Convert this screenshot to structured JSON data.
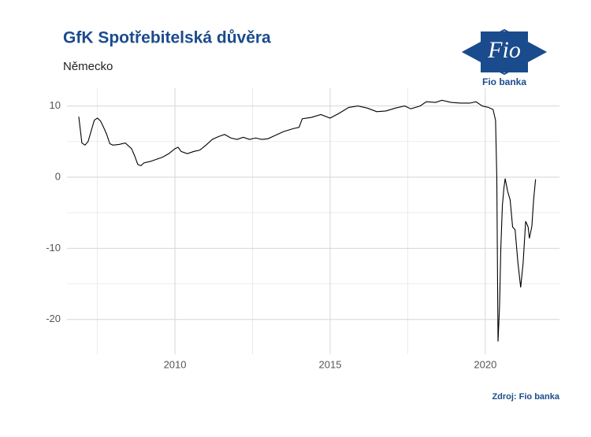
{
  "chart_data": {
    "type": "line",
    "title": "GfK Spotřebitelská důvěra",
    "subtitle": "Německo",
    "source": "Zdroj: Fio banka",
    "logo": {
      "mark": "Fio",
      "name": "Fio banka"
    },
    "x": [
      2006.9,
      2007.0,
      2007.1,
      2007.2,
      2007.3,
      2007.4,
      2007.5,
      2007.6,
      2007.7,
      2007.8,
      2007.9,
      2008.0,
      2008.2,
      2008.4,
      2008.6,
      2008.7,
      2008.8,
      2008.9,
      2009.0,
      2009.2,
      2009.4,
      2009.6,
      2009.8,
      2010.0,
      2010.1,
      2010.2,
      2010.4,
      2010.6,
      2010.8,
      2011.0,
      2011.2,
      2011.4,
      2011.6,
      2011.8,
      2012.0,
      2012.2,
      2012.4,
      2012.6,
      2012.8,
      2013.0,
      2013.2,
      2013.5,
      2013.8,
      2014.0,
      2014.1,
      2014.4,
      2014.7,
      2015.0,
      2015.3,
      2015.6,
      2015.9,
      2016.2,
      2016.5,
      2016.8,
      2017.1,
      2017.4,
      2017.6,
      2017.9,
      2018.1,
      2018.4,
      2018.6,
      2018.9,
      2019.2,
      2019.5,
      2019.7,
      2019.9,
      2020.1,
      2020.25,
      2020.33,
      2020.37,
      2020.41,
      2020.46,
      2020.5,
      2020.55,
      2020.6,
      2020.64,
      2020.72,
      2020.8,
      2020.88,
      2020.96,
      2021.05,
      2021.14,
      2021.22,
      2021.3,
      2021.38,
      2021.42,
      2021.5,
      2021.56,
      2021.62
    ],
    "values": [
      8.5,
      4.8,
      4.5,
      5.0,
      6.5,
      8.0,
      8.3,
      7.9,
      7.0,
      6.0,
      4.7,
      4.5,
      4.6,
      4.8,
      4.0,
      3.0,
      1.8,
      1.6,
      2.0,
      2.2,
      2.5,
      2.8,
      3.3,
      4.0,
      4.2,
      3.6,
      3.3,
      3.6,
      3.8,
      4.5,
      5.3,
      5.7,
      6.0,
      5.5,
      5.3,
      5.6,
      5.3,
      5.5,
      5.3,
      5.4,
      5.8,
      6.4,
      6.8,
      7.0,
      8.2,
      8.4,
      8.8,
      8.3,
      9.0,
      9.8,
      10.0,
      9.7,
      9.2,
      9.3,
      9.7,
      10.0,
      9.6,
      10.0,
      10.6,
      10.5,
      10.8,
      10.5,
      10.4,
      10.4,
      10.6,
      10.0,
      9.8,
      9.5,
      8.0,
      0.0,
      -23.1,
      -18.0,
      -10.0,
      -4.0,
      -1.5,
      -0.2,
      -2.0,
      -3.2,
      -7.0,
      -7.4,
      -12.0,
      -15.5,
      -12.0,
      -6.2,
      -7.0,
      -8.6,
      -6.9,
      -3.0,
      -0.3
    ],
    "color": "#000000",
    "xlim": [
      2006.52,
      2022.39
    ],
    "ylim": [
      -24.9,
      12.5
    ],
    "xticks": [
      2010,
      2015,
      2020
    ],
    "yticks": [
      -20,
      -10,
      0,
      10
    ],
    "grid": true
  }
}
